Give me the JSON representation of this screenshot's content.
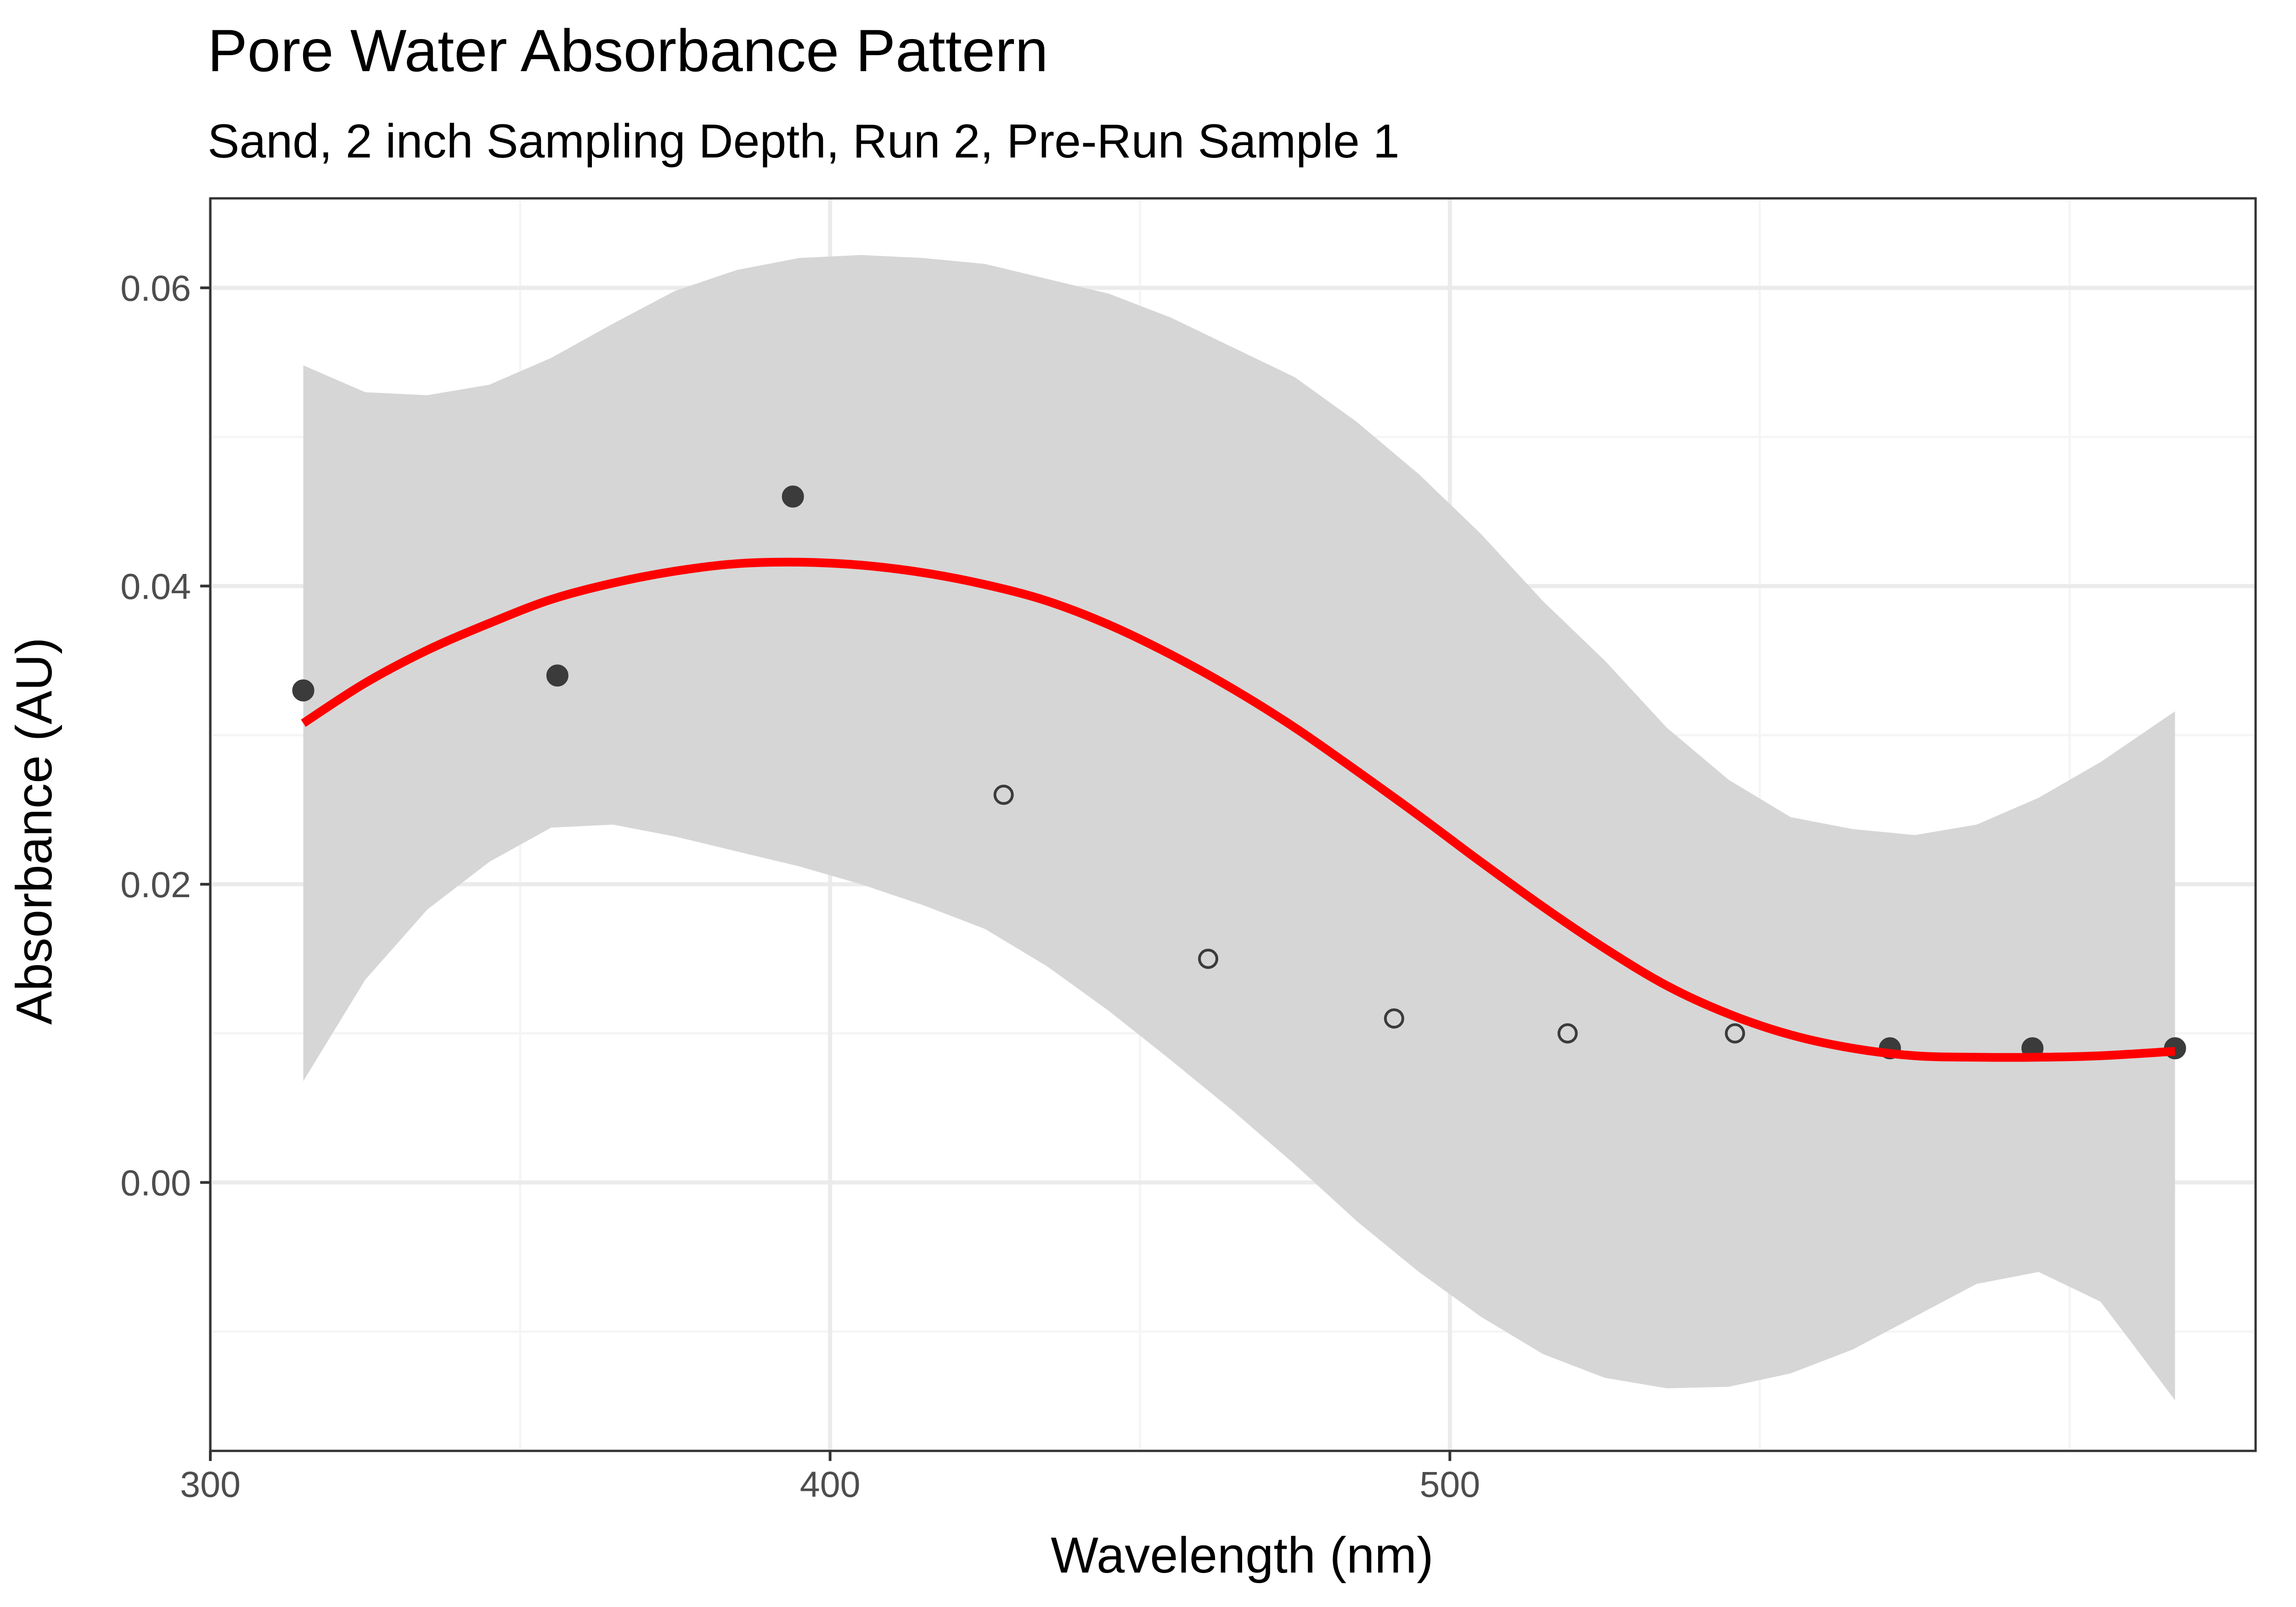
{
  "chart_data": {
    "type": "scatter",
    "title": "Pore Water Absorbance Pattern",
    "subtitle": "Sand, 2 inch Sampling Depth, Run 2, Pre-Run Sample 1",
    "xlabel": "Wavelength (nm)",
    "ylabel": "Absorbance (AU)",
    "xlim": [
      300,
      630
    ],
    "ylim": [
      -0.018,
      0.066
    ],
    "x_ticks": [
      300,
      400,
      500
    ],
    "x_minor_ticks": [
      350,
      450,
      550,
      600
    ],
    "y_ticks": [
      0.0,
      0.02,
      0.04,
      0.06
    ],
    "y_tick_labels": [
      "0.00",
      "0.02",
      "0.04",
      "0.06"
    ],
    "y_minor_ticks": [
      -0.01,
      0.01,
      0.03,
      0.05
    ],
    "grid": true,
    "legend": "none",
    "points": [
      {
        "x": 315,
        "y": 0.033,
        "filled": true
      },
      {
        "x": 356,
        "y": 0.034,
        "filled": true
      },
      {
        "x": 394,
        "y": 0.046,
        "filled": true
      },
      {
        "x": 428,
        "y": 0.026,
        "filled": false
      },
      {
        "x": 461,
        "y": 0.015,
        "filled": false
      },
      {
        "x": 491,
        "y": 0.011,
        "filled": false
      },
      {
        "x": 519,
        "y": 0.01,
        "filled": false
      },
      {
        "x": 546,
        "y": 0.01,
        "filled": false
      },
      {
        "x": 571,
        "y": 0.009,
        "filled": true
      },
      {
        "x": 594,
        "y": 0.009,
        "filled": true
      },
      {
        "x": 617,
        "y": 0.009,
        "filled": true
      }
    ],
    "smooth_fit": {
      "color": "#FF0000",
      "x": [
        315,
        325,
        335,
        345,
        355,
        365,
        375,
        385,
        395,
        405,
        415,
        425,
        435,
        445,
        455,
        465,
        475,
        485,
        495,
        505,
        515,
        525,
        535,
        545,
        555,
        565,
        575,
        585,
        595,
        605,
        617
      ],
      "y": [
        0.0308,
        0.0335,
        0.0357,
        0.0375,
        0.0391,
        0.0402,
        0.041,
        0.0415,
        0.0416,
        0.0414,
        0.0409,
        0.0401,
        0.039,
        0.0374,
        0.0354,
        0.0331,
        0.0305,
        0.0276,
        0.0246,
        0.0215,
        0.0185,
        0.0157,
        0.0132,
        0.0113,
        0.0099,
        0.009,
        0.0085,
        0.0084,
        0.0084,
        0.0085,
        0.0088
      ],
      "ci_upper": [
        0.0548,
        0.053,
        0.0528,
        0.0535,
        0.0553,
        0.0576,
        0.0598,
        0.0612,
        0.062,
        0.0622,
        0.062,
        0.0616,
        0.0606,
        0.0596,
        0.058,
        0.056,
        0.054,
        0.051,
        0.0475,
        0.0435,
        0.039,
        0.035,
        0.0305,
        0.027,
        0.0245,
        0.0237,
        0.0233,
        0.024,
        0.0258,
        0.0282,
        0.0316
      ],
      "ci_lower": [
        0.0068,
        0.0136,
        0.0183,
        0.0215,
        0.0238,
        0.024,
        0.0232,
        0.0222,
        0.0212,
        0.02,
        0.0186,
        0.017,
        0.0145,
        0.0115,
        0.0082,
        0.0048,
        0.0012,
        -0.0026,
        -0.006,
        -0.009,
        -0.0115,
        -0.0131,
        -0.0138,
        -0.0137,
        -0.0128,
        -0.0112,
        -0.009,
        -0.0068,
        -0.006,
        -0.008,
        -0.0146
      ]
    },
    "colors": {
      "panel_background": "#FFFFFF",
      "panel_border": "#333333",
      "grid_major": "#EBEBEB",
      "grid_minor": "#F5F5F5",
      "ribbon": "#D6D6D6",
      "point": "#3B3B3B",
      "fit_line": "#FF0000"
    }
  }
}
